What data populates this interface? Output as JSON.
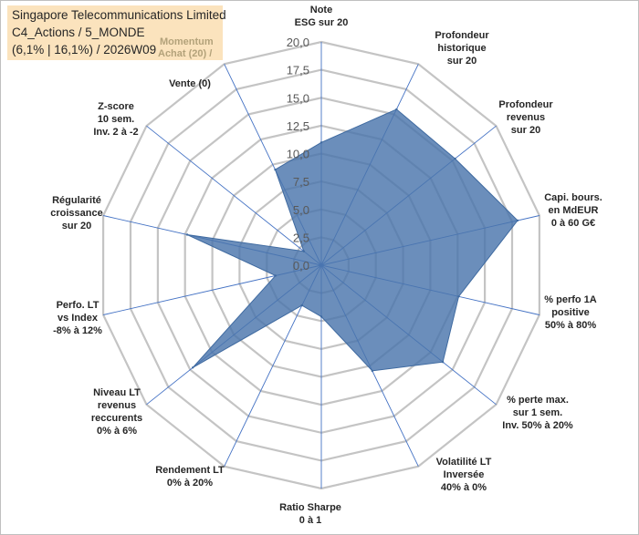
{
  "header": {
    "line1": "Singapore Telecommunications Limited",
    "line2": "C4_Actions / 5_MONDE",
    "line3": "(6,1% | 16,1%) / 2026W09",
    "momentum_line1": "Momentum",
    "momentum_line2": "Achat (20) /",
    "momentum_line3": "Vente (0)"
  },
  "chart_data": {
    "type": "radar",
    "title": "Singapore Telecommunications Limited C4_Actions / 5_MONDE (6,1% | 16,1%) / 2026W09",
    "rmin": 0,
    "rmax": 20,
    "ticks": [
      "0,0",
      "2,5",
      "5,0",
      "7,5",
      "10,0",
      "12,5",
      "15,0",
      "17,5",
      "20,0"
    ],
    "axes": [
      {
        "label": [
          "Note",
          "ESG sur 20"
        ],
        "value": 11
      },
      {
        "label": [
          "Profondeur",
          "historique",
          "sur 20"
        ],
        "value": 15.5
      },
      {
        "label": [
          "Profondeur",
          "revenus",
          "sur 20"
        ],
        "value": 15.3
      },
      {
        "label": [
          "Capi. bours.",
          "en MdEUR",
          "0 à 60 G€"
        ],
        "value": 18
      },
      {
        "label": [
          "% perfo 1A",
          "positive",
          "50% à 80%"
        ],
        "value": 12.6
      },
      {
        "label": [
          "% perte max.",
          "sur 1 sem.",
          "Inv. 50% à 20%"
        ],
        "value": 13.9
      },
      {
        "label": [
          "Volatilité LT",
          "Inversée",
          "40% à 0%"
        ],
        "value": 10.5
      },
      {
        "label": [
          "Ratio Sharpe",
          "0 à 1"
        ],
        "value": 4.6
      },
      {
        "label": [
          "Rendement LT",
          "0% à 20%"
        ],
        "value": 4.0
      },
      {
        "label": [
          "Niveau LT",
          "revenus",
          "reccurents",
          "0% à 6%"
        ],
        "value": 14.7
      },
      {
        "label": [
          "Perfo. LT",
          "vs Index",
          "-8% à 12%"
        ],
        "value": 4.2
      },
      {
        "label": [
          "Régularité",
          "croissance",
          "sur 20"
        ],
        "value": 12.3
      },
      {
        "label": [
          "Z-score",
          "10 sem.",
          "Inv. 2 à -2"
        ],
        "value": 2.0
      },
      {
        "label": [
          "Momentum",
          "Achat (20) /",
          "Vente (0)"
        ],
        "value": 9.5
      }
    ],
    "series_color": "#4a75ac",
    "grid_color": "#c4c4c4",
    "axis_color": "#4472c4"
  }
}
